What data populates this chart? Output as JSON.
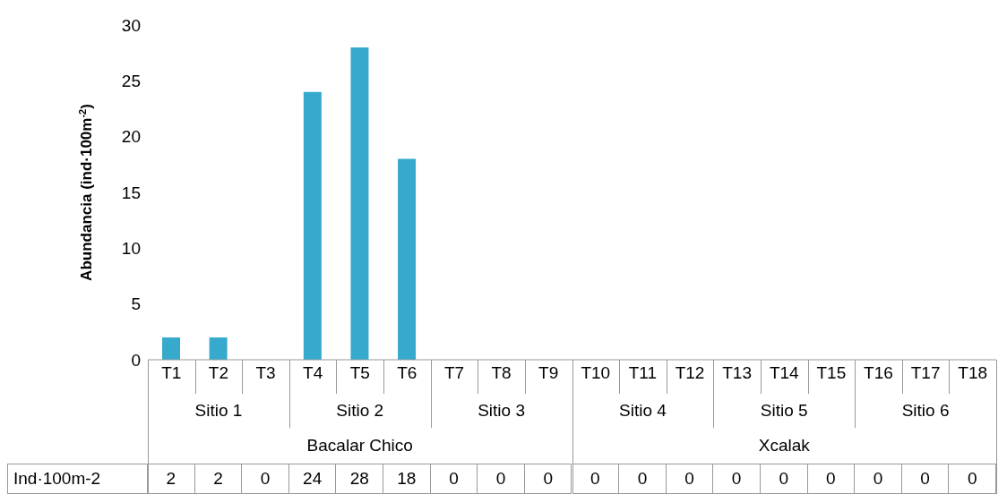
{
  "chart_data": {
    "type": "bar",
    "ylabel": "Abundancia (ind·100m$^{-2}$)",
    "categories": [
      "T1",
      "T2",
      "T3",
      "T4",
      "T5",
      "T6",
      "T7",
      "T8",
      "T9",
      "T10",
      "T11",
      "T12",
      "T13",
      "T14",
      "T15",
      "T16",
      "T17",
      "T18"
    ],
    "values": [
      2,
      2,
      0,
      24,
      28,
      18,
      0,
      0,
      0,
      0,
      0,
      0,
      0,
      0,
      0,
      0,
      0,
      0
    ],
    "color": "#35aacd",
    "ylim": [
      0,
      30
    ],
    "yticks": [
      0,
      5,
      10,
      15,
      20,
      25,
      30
    ],
    "grid": false,
    "data_labels": true,
    "annotations": [
      "Sitio 1",
      "Sitio 2",
      "Sitio 3",
      "Sitio 4",
      "Sitio 5",
      "Sitio 6",
      "Bacalar Chico",
      "Xcalak",
      "Ind·100m-2"
    ]
  }
}
